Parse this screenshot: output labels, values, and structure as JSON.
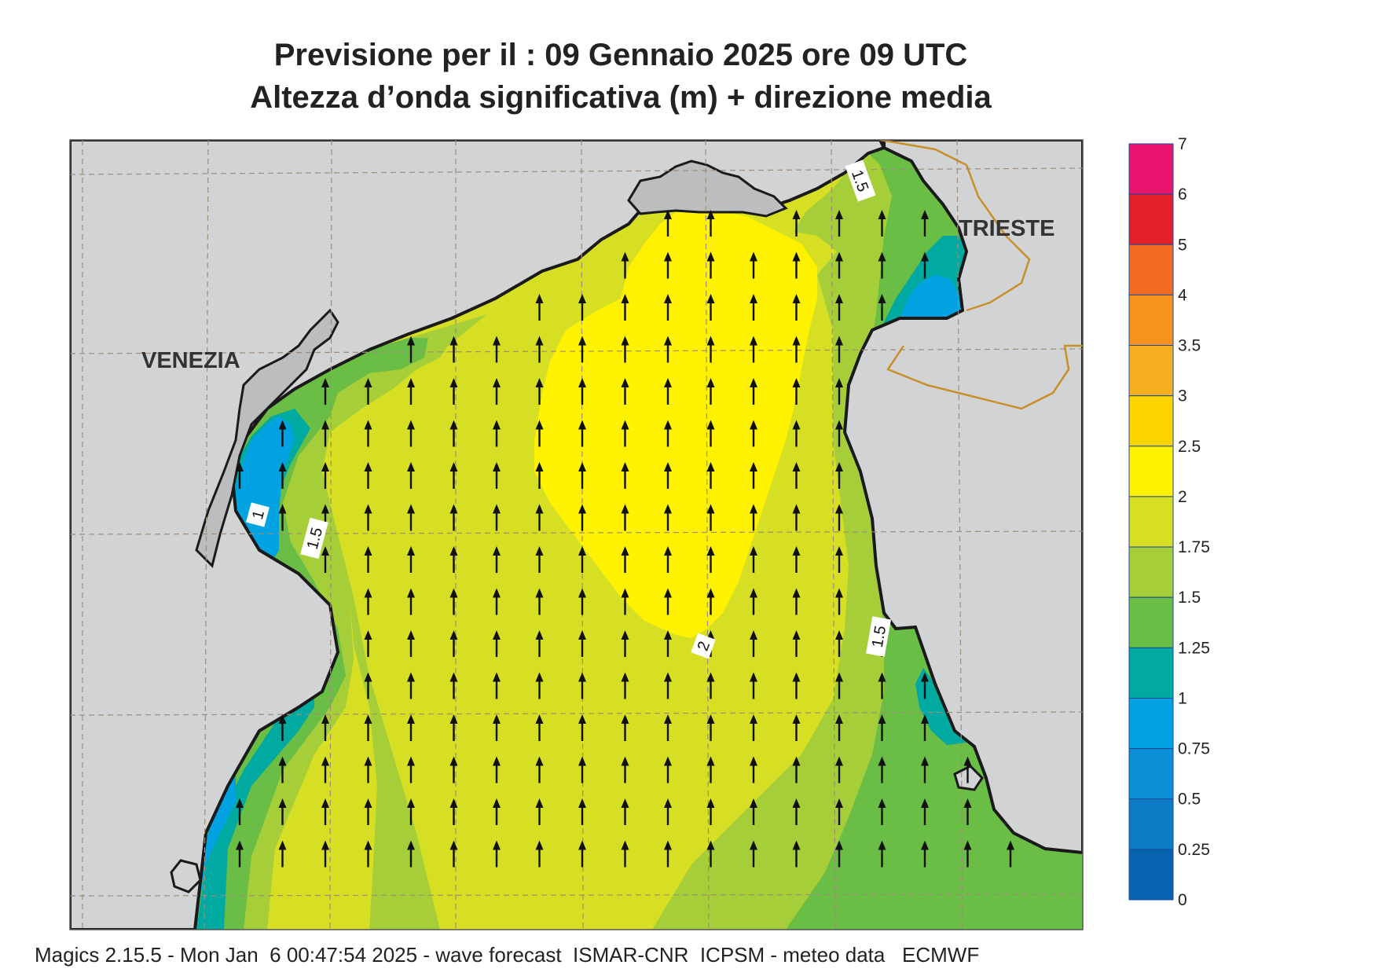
{
  "title": {
    "line1": "Previsione per il  :  09  Gennaio  2025   ore 09 UTC",
    "line2": "Altezza d’onda significativa (m) + direzione media"
  },
  "cities": {
    "venezia": "VENEZIA",
    "trieste": "TRIESTE"
  },
  "contour_labels": [
    {
      "id": "c-1-west",
      "text": "1"
    },
    {
      "id": "c-15-west",
      "text": "1.5"
    },
    {
      "id": "c-15-ne",
      "text": "1.5"
    },
    {
      "id": "c-15-east",
      "text": "1.5"
    },
    {
      "id": "c-2-south",
      "text": "2"
    }
  ],
  "legend": {
    "ticks": [
      "7",
      "6",
      "5",
      "4",
      "3.5",
      "3",
      "2.5",
      "2",
      "1.75",
      "1.5",
      "1.25",
      "1",
      "0.75",
      "0.5",
      "0.25",
      "0"
    ],
    "colors": [
      "#e8146e",
      "#e51f2a",
      "#f26b22",
      "#f7931e",
      "#f6b01f",
      "#fed400",
      "#fff200",
      "#d6df23",
      "#a6ce39",
      "#6abd45",
      "#00aaa0",
      "#00a2e2",
      "#0b8fd6",
      "#0c7cc4",
      "#0762b0"
    ]
  },
  "arrows": {
    "direction": "north"
  },
  "footer": "Magics 2.15.5 - Mon Jan  6 00:47:54 2025 - wave forecast  ISMAR-CNR  ICPSM - meteo data   ECMWF",
  "colors": {
    "land": "#d1d3d4",
    "lagoon": "#bbbdbf",
    "coast": "#1a1a1a",
    "border": "#c8902a",
    "grid": "#a08c78"
  }
}
